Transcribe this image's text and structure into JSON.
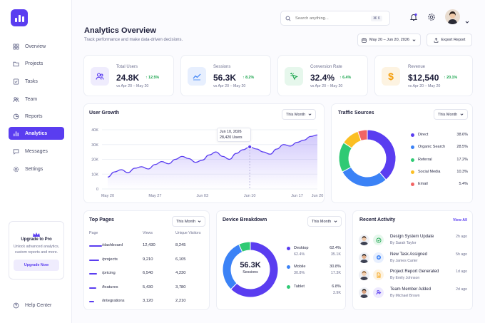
{
  "sidebar": {
    "items": [
      {
        "label": "Overview"
      },
      {
        "label": "Projects"
      },
      {
        "label": "Tasks"
      },
      {
        "label": "Team"
      },
      {
        "label": "Reports"
      },
      {
        "label": "Analytics"
      },
      {
        "label": "Messages"
      },
      {
        "label": "Settings"
      }
    ],
    "promo": {
      "title": "Upgrade to Pro",
      "text1": "Unlock advanced analytics,",
      "text2": "custom reports and more.",
      "button": "Upgrade Now"
    },
    "help": "Help Center"
  },
  "header": {
    "search_placeholder": "Search anything...",
    "shortcut": "⌘ K",
    "title": "Analytics Overview",
    "subtitle": "Track performance and make data-driven decisions.",
    "date_range": "May 20 – Jun 20, 2026",
    "export": "Export Report"
  },
  "stats": [
    {
      "label": "Total Users",
      "value": "24.8K",
      "change": "↑ 12.5%",
      "compare": "vs Apr 20 – May 20",
      "icon": "users-icon"
    },
    {
      "label": "Sessions",
      "value": "56.3K",
      "change": "↑ 8.2%",
      "compare": "vs Apr 20 – May 20",
      "icon": "trend-icon"
    },
    {
      "label": "Conversion Rate",
      "value": "32.4%",
      "change": "↑ 6.4%",
      "compare": "vs Apr 20 – May 20",
      "icon": "cursor-click-icon"
    },
    {
      "label": "Revenue",
      "value": "$12,540",
      "change": "↑ 20.1%",
      "compare": "vs Apr 20 – May 20",
      "icon": "dollar-icon"
    }
  ],
  "growth": {
    "title": "User Growth",
    "filter": "This Month",
    "tooltip_date": "Jun 10, 2026",
    "tooltip_value": "28,420 Users",
    "y_ticks": [
      "40K",
      "30K",
      "20K",
      "10K",
      "0"
    ],
    "x_ticks": [
      "May 20",
      "May 27",
      "Jun 03",
      "Jun 10",
      "Jun 17",
      "Jun 20"
    ]
  },
  "traffic": {
    "title": "Traffic Sources",
    "filter": "This Month",
    "sources": [
      {
        "name": "Direct",
        "value": "38.6%",
        "pct": 38.6,
        "color": "#5a3df0"
      },
      {
        "name": "Organic Search",
        "value": "28.5%",
        "pct": 28.5,
        "color": "#3b82f6"
      },
      {
        "name": "Referral",
        "value": "17.2%",
        "pct": 17.2,
        "color": "#2fca74"
      },
      {
        "name": "Social Media",
        "value": "10.3%",
        "pct": 10.3,
        "color": "#fbbf24"
      },
      {
        "name": "Email",
        "value": "5.4%",
        "pct": 5.4,
        "color": "#f26464"
      }
    ]
  },
  "pages": {
    "title": "Top Pages",
    "filter": "This Month",
    "headers": [
      "Page",
      "Views",
      "Unique Visitors"
    ],
    "rows": [
      {
        "page": "/dashboard",
        "views": "12,430",
        "unique": "8,245",
        "bar": 1.0
      },
      {
        "page": "/projects",
        "views": "9,210",
        "unique": "6,105",
        "bar": 0.74
      },
      {
        "page": "/pricing",
        "views": "6,540",
        "unique": "4,230",
        "bar": 0.53
      },
      {
        "page": "/features",
        "views": "5,430",
        "unique": "3,780",
        "bar": 0.44
      },
      {
        "page": "/integrations",
        "views": "3,120",
        "unique": "2,210",
        "bar": 0.25
      }
    ]
  },
  "devices": {
    "title": "Device Breakdown",
    "filter": "This Month",
    "center_value": "56.3K",
    "center_label": "Sessions",
    "items": [
      {
        "name": "Desktop",
        "pct": "62.4%",
        "pct2": "62.4%",
        "count": "35.1K",
        "share": 62.4,
        "color": "#5a3df0"
      },
      {
        "name": "Mobile",
        "pct": "30.8%",
        "pct2": "30.8%",
        "count": "17.3K",
        "share": 30.8,
        "color": "#3b82f6"
      },
      {
        "name": "Tablet",
        "pct": "6.8%",
        "count": "3.9K",
        "share": 6.8,
        "color": "#2fca74"
      }
    ]
  },
  "activity": {
    "title": "Recent Activity",
    "view_all": "View All",
    "items": [
      {
        "title": "Design System Update",
        "by": "By Sarah Taylor",
        "time": "2h ago",
        "icon": "check-circle-icon",
        "color": "#16a34a",
        "bg": "#e6f7ec"
      },
      {
        "title": "New Task Assigned",
        "by": "By James Carter",
        "time": "5h ago",
        "icon": "plus-circle-icon",
        "color": "#3b82f6",
        "bg": "#e7effe"
      },
      {
        "title": "Project Report Generated",
        "by": "By Emily Johnson",
        "time": "1d ago",
        "icon": "document-icon",
        "color": "#f59e0b",
        "bg": "#fdf3e1"
      },
      {
        "title": "Team Member Added",
        "by": "By Michael Brown",
        "time": "2d ago",
        "icon": "user-plus-icon",
        "color": "#5a3df0",
        "bg": "#eeeafe"
      }
    ]
  },
  "chart_data": {
    "type": "area",
    "title": "User Growth",
    "x_ticks": [
      "May 20",
      "May 27",
      "Jun 03",
      "Jun 10",
      "Jun 17",
      "Jun 20"
    ],
    "ylim": [
      0,
      40000
    ],
    "series": [
      {
        "x": [
          "May 20",
          "May 21",
          "May 22",
          "May 23",
          "May 24",
          "May 25",
          "May 26",
          "May 27",
          "May 28",
          "May 29",
          "May 30",
          "May 31",
          "Jun 01",
          "Jun 02",
          "Jun 03",
          "Jun 04",
          "Jun 05",
          "Jun 06",
          "Jun 07",
          "Jun 08",
          "Jun 09",
          "Jun 10",
          "Jun 11",
          "Jun 12",
          "Jun 13",
          "Jun 14",
          "Jun 15",
          "Jun 16",
          "Jun 17",
          "Jun 18",
          "Jun 19",
          "Jun 20"
        ],
        "values": [
          8000,
          11500,
          13000,
          11000,
          14000,
          15000,
          13500,
          16500,
          18500,
          17000,
          20000,
          22000,
          20500,
          18000,
          19500,
          23000,
          25000,
          22000,
          20000,
          24000,
          26500,
          28420,
          27000,
          25000,
          23500,
          27000,
          30000,
          29000,
          31500,
          33000,
          35500,
          36500
        ]
      }
    ]
  }
}
